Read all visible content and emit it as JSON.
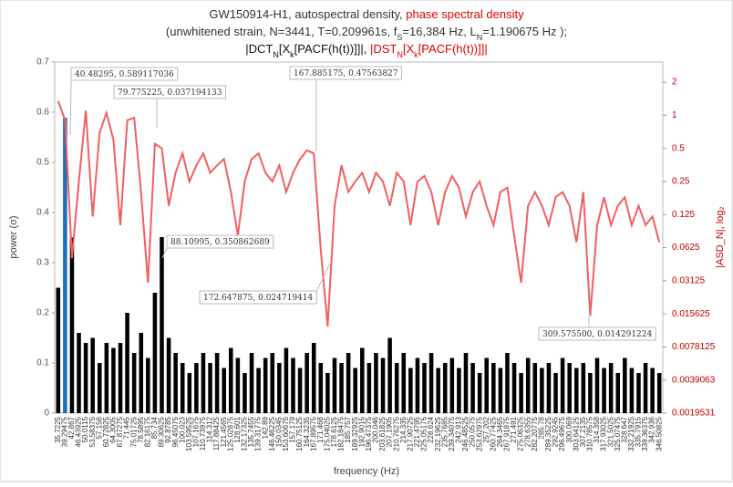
{
  "chart_data": {
    "type": "bar",
    "title_lines": [
      [
        {
          "text": "GW150914-H1, autospectral density, ",
          "color": "#333333"
        },
        {
          "text": "phase spectral density",
          "color": "#e00000"
        }
      ],
      [
        {
          "text": "(unwhitened strain, N=3441, T=0.209961s,  f",
          "color": "#333333"
        },
        {
          "text": "S",
          "color": "#333333",
          "sub": true
        },
        {
          "text": "=16,384 Hz, L",
          "color": "#333333"
        },
        {
          "text": "N",
          "color": "#333333",
          "sub": true
        },
        {
          "text": "=1.190675 Hz );",
          "color": "#333333"
        }
      ],
      [
        {
          "text": "|DCT",
          "color": "#111111"
        },
        {
          "text": "N",
          "color": "#111111",
          "sub": true
        },
        {
          "text": "[X",
          "color": "#111111"
        },
        {
          "text": "k",
          "color": "#111111",
          "sub": true
        },
        {
          "text": "[PACF(h(t))]]|, ",
          "color": "#111111"
        },
        {
          "text": "|DST",
          "color": "#e00000"
        },
        {
          "text": "N",
          "color": "#e00000",
          "sub": true
        },
        {
          "text": "[X",
          "color": "#e00000"
        },
        {
          "text": "k",
          "color": "#e00000",
          "sub": true
        },
        {
          "text": "[PACF(h(t))]]|",
          "color": "#e00000"
        }
      ]
    ],
    "x_label": "frequency (Hz)",
    "y_label": "power (σ)",
    "y2_label": "|ASD_N|, log₂",
    "categories": [
      "35.7225",
      "39.29475",
      "42.867",
      "46.43925",
      "50.0115",
      "53.58375",
      "57.156",
      "60.72825",
      "64.3005",
      "67.87275",
      "71.445",
      "75.01725",
      "78.5895",
      "82.16175",
      "85.734",
      "89.30625",
      "92.8785",
      "96.45075",
      "100.023",
      "103.59525",
      "107.1675",
      "110.73975",
      "114.312",
      "117.88425",
      "121.4565",
      "125.02875",
      "128.601",
      "132.17325",
      "135.7455",
      "139.31775",
      "142.89",
      "146.46225",
      "150.0345",
      "153.60675",
      "157.179",
      "160.75125",
      "164.3235",
      "167.89575",
      "171.468",
      "175.04025",
      "178.6125",
      "182.18475",
      "185.757",
      "189.32925",
      "192.9015",
      "196.47375",
      "200.046",
      "203.61825",
      "207.1905",
      "210.76275",
      "214.335",
      "217.90725",
      "221.4795",
      "225.05175",
      "228.624",
      "232.19625",
      "235.7685",
      "239.34075",
      "242.913",
      "246.48525",
      "250.0575",
      "253.62975",
      "257.202",
      "260.77425",
      "264.3465",
      "267.91875",
      "271.491",
      "275.06325",
      "278.6355",
      "282.20775",
      "285.78",
      "289.35225",
      "292.9245",
      "296.49675",
      "300.069",
      "303.64125",
      "307.2135",
      "310.78575",
      "314.358",
      "317.93025",
      "321.5025",
      "325.07475",
      "328.647",
      "332.21925",
      "335.7915",
      "339.36375",
      "342.936",
      "346.50825"
    ],
    "series": [
      {
        "name": "power",
        "color": "#000000",
        "highlight": {
          "index": 1,
          "color": "#1f6fb4"
        },
        "values": [
          0.25,
          0.589,
          0.35,
          0.16,
          0.14,
          0.15,
          0.1,
          0.14,
          0.13,
          0.14,
          0.2,
          0.12,
          0.16,
          0.11,
          0.24,
          0.351,
          0.15,
          0.12,
          0.1,
          0.08,
          0.1,
          0.12,
          0.1,
          0.12,
          0.09,
          0.13,
          0.11,
          0.08,
          0.12,
          0.09,
          0.11,
          0.12,
          0.1,
          0.13,
          0.11,
          0.09,
          0.12,
          0.14,
          0.1,
          0.08,
          0.11,
          0.1,
          0.12,
          0.09,
          0.13,
          0.1,
          0.12,
          0.11,
          0.15,
          0.1,
          0.12,
          0.09,
          0.11,
          0.1,
          0.12,
          0.09,
          0.1,
          0.11,
          0.09,
          0.12,
          0.1,
          0.08,
          0.11,
          0.1,
          0.09,
          0.12,
          0.1,
          0.08,
          0.11,
          0.1,
          0.09,
          0.1,
          0.08,
          0.11,
          0.1,
          0.09,
          0.1,
          0.08,
          0.11,
          0.09,
          0.1,
          0.08,
          0.11,
          0.09,
          0.08,
          0.1,
          0.09,
          0.08
        ]
      },
      {
        "name": "phase spectral density",
        "color": "#f06060",
        "type": "line",
        "axis": "y2",
        "values": [
          1.35,
          0.9,
          0.05,
          0.25,
          1.1,
          0.12,
          0.7,
          1.05,
          0.6,
          0.1,
          0.9,
          0.95,
          0.2,
          0.03,
          0.55,
          0.5,
          0.15,
          0.3,
          0.45,
          0.25,
          0.35,
          0.45,
          0.3,
          0.35,
          0.4,
          0.2,
          0.08,
          0.25,
          0.4,
          0.45,
          0.3,
          0.25,
          0.35,
          0.2,
          0.3,
          0.4,
          0.48,
          0.45,
          0.06,
          0.012,
          0.15,
          0.35,
          0.2,
          0.25,
          0.3,
          0.2,
          0.3,
          0.25,
          0.15,
          0.3,
          0.25,
          0.1,
          0.25,
          0.28,
          0.2,
          0.1,
          0.2,
          0.28,
          0.22,
          0.12,
          0.2,
          0.25,
          0.15,
          0.1,
          0.2,
          0.22,
          0.08,
          0.03,
          0.15,
          0.2,
          0.15,
          0.1,
          0.18,
          0.2,
          0.15,
          0.07,
          0.2,
          0.015,
          0.1,
          0.18,
          0.1,
          0.15,
          0.18,
          0.1,
          0.15,
          0.1,
          0.12,
          0.07
        ]
      }
    ],
    "ylim": [
      0,
      0.7
    ],
    "yticks": [
      0,
      0.1,
      0.2,
      0.3,
      0.4,
      0.5,
      0.6,
      0.7
    ],
    "y2lim": [
      0.0019531,
      3.05
    ],
    "y2_log": true,
    "y2ticks": [
      2,
      1,
      0.5,
      0.25,
      0.125,
      0.0625,
      0.03125,
      0.015625,
      0.0078125,
      0.0039063,
      0.0019531
    ],
    "grid": false,
    "annotations": [
      "40.48295, 0.589117036",
      "79.775225, 0.037194133",
      "167.885175, 0.47563827",
      "88.10995, 0.350862689",
      "172.647875, 0.024719414",
      "309.575500, 0.014291224"
    ]
  }
}
